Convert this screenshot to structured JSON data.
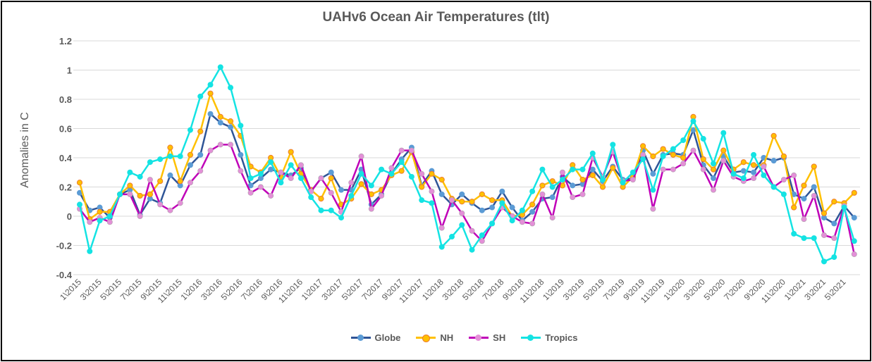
{
  "chart_data": {
    "type": "line",
    "title": "UAHv6 Ocean Air Temperatures (tlt)",
    "ylabel": "Anomalies in C",
    "xlabel": "",
    "ylim": [
      -0.4,
      1.2
    ],
    "yticks": [
      "1.2",
      "1",
      "0.8",
      "0.6",
      "0.4",
      "0.2",
      "0",
      "-0.2",
      "-0.4"
    ],
    "ytick_values": [
      1.2,
      1,
      0.8,
      0.6,
      0.4,
      0.2,
      0,
      -0.2,
      -0.4
    ],
    "grid": true,
    "legend": "bottom",
    "xticks": [
      "1\\2015",
      "3\\2015",
      "5\\2015",
      "7\\2015",
      "9\\2015",
      "11\\2015",
      "1\\2016",
      "3\\2016",
      "5\\2016",
      "7\\2016",
      "9\\2016",
      "11\\2016",
      "1\\2017",
      "3\\2017",
      "5\\2017",
      "7\\2017",
      "9\\2017",
      "11\\2017",
      "1\\2018",
      "3\\2018",
      "5\\2018",
      "7\\2018",
      "9\\2018",
      "11\\2018",
      "1\\2019",
      "3\\2019",
      "5\\2019",
      "7\\2019",
      "9\\2019",
      "11\\2019",
      "1\\2020",
      "3\\2020",
      "5\\2020",
      "7\\2020",
      "9\\2020",
      "11\\2020",
      "1\\2021",
      "3\\2021",
      "5\\2021"
    ],
    "series": [
      {
        "name": "Globe",
        "color": "#2F5597",
        "marker": "#5B9BD5",
        "values": [
          0.16,
          0.04,
          0.06,
          -0.01,
          0.15,
          0.18,
          0.01,
          0.12,
          0.09,
          0.28,
          0.21,
          0.35,
          0.42,
          0.7,
          0.64,
          0.61,
          0.42,
          0.21,
          0.26,
          0.32,
          0.3,
          0.28,
          0.33,
          0.17,
          0.26,
          0.3,
          0.18,
          0.18,
          0.32,
          0.08,
          0.15,
          0.29,
          0.39,
          0.47,
          0.21,
          0.31,
          0.15,
          0.08,
          0.15,
          0.09,
          0.04,
          0.06,
          0.17,
          0.06,
          -0.03,
          0.03,
          0.12,
          0.13,
          0.27,
          0.21,
          0.22,
          0.32,
          0.24,
          0.34,
          0.25,
          0.26,
          0.45,
          0.29,
          0.42,
          0.43,
          0.42,
          0.59,
          0.35,
          0.26,
          0.41,
          0.3,
          0.31,
          0.3,
          0.4,
          0.38,
          0.4,
          0.15,
          0.12,
          0.2,
          -0.01,
          -0.05,
          0.07,
          -0.01
        ]
      },
      {
        "name": "NH",
        "color": "#FFC000",
        "marker": "#FFC000",
        "values": [
          0.23,
          -0.02,
          0.03,
          0.03,
          0.15,
          0.21,
          0.14,
          0.15,
          0.24,
          0.47,
          0.24,
          0.42,
          0.58,
          0.84,
          0.68,
          0.65,
          0.55,
          0.34,
          0.3,
          0.4,
          0.27,
          0.44,
          0.29,
          0.18,
          0.12,
          0.26,
          0.08,
          0.12,
          0.22,
          0.15,
          0.18,
          0.28,
          0.31,
          0.44,
          0.2,
          0.29,
          0.25,
          0.12,
          0.1,
          0.1,
          0.15,
          0.11,
          0.11,
          0.0,
          0.01,
          0.08,
          0.21,
          0.24,
          0.21,
          0.35,
          0.25,
          0.28,
          0.2,
          0.33,
          0.2,
          0.27,
          0.48,
          0.41,
          0.46,
          0.42,
          0.4,
          0.68,
          0.39,
          0.32,
          0.45,
          0.32,
          0.37,
          0.35,
          0.35,
          0.55,
          0.41,
          0.06,
          0.21,
          0.34,
          0.02,
          0.1,
          0.09,
          0.16
        ]
      },
      {
        "name": "SH",
        "color": "#C000B8",
        "marker": "#E48FD8",
        "values": [
          0.05,
          -0.04,
          -0.01,
          -0.04,
          0.15,
          0.15,
          0.0,
          0.25,
          0.08,
          0.04,
          0.09,
          0.23,
          0.31,
          0.45,
          0.49,
          0.49,
          0.31,
          0.16,
          0.2,
          0.14,
          0.3,
          0.26,
          0.35,
          0.17,
          0.26,
          0.16,
          0.03,
          0.23,
          0.41,
          0.05,
          0.14,
          0.33,
          0.45,
          0.45,
          0.29,
          0.17,
          -0.08,
          0.11,
          0.02,
          -0.1,
          -0.17,
          -0.05,
          0.06,
          0.0,
          -0.04,
          -0.05,
          0.15,
          -0.01,
          0.3,
          0.13,
          0.15,
          0.4,
          0.27,
          0.44,
          0.24,
          0.25,
          0.42,
          0.05,
          0.32,
          0.32,
          0.36,
          0.45,
          0.32,
          0.18,
          0.38,
          0.27,
          0.24,
          0.26,
          0.34,
          0.2,
          0.25,
          0.28,
          -0.02,
          0.14,
          -0.13,
          -0.15,
          0.07,
          -0.26
        ]
      },
      {
        "name": "Tropics",
        "color": "#14E3E3",
        "marker": "#14E3E3",
        "values": [
          0.08,
          -0.24,
          -0.03,
          0.0,
          0.15,
          0.3,
          0.27,
          0.37,
          0.39,
          0.41,
          0.41,
          0.59,
          0.82,
          0.9,
          1.02,
          0.88,
          0.62,
          0.26,
          0.29,
          0.37,
          0.23,
          0.35,
          0.26,
          0.13,
          0.04,
          0.04,
          -0.01,
          0.14,
          0.29,
          0.21,
          0.32,
          0.29,
          0.37,
          0.27,
          0.11,
          0.09,
          -0.21,
          -0.14,
          -0.06,
          -0.23,
          -0.13,
          -0.05,
          0.09,
          -0.03,
          0.04,
          0.17,
          0.32,
          0.2,
          0.25,
          0.32,
          0.32,
          0.43,
          0.25,
          0.49,
          0.23,
          0.3,
          0.39,
          0.18,
          0.41,
          0.46,
          0.52,
          0.65,
          0.53,
          0.36,
          0.57,
          0.29,
          0.26,
          0.42,
          0.28,
          0.2,
          0.15,
          -0.12,
          -0.15,
          -0.15,
          -0.31,
          -0.28,
          0.06,
          -0.17
        ]
      }
    ]
  }
}
